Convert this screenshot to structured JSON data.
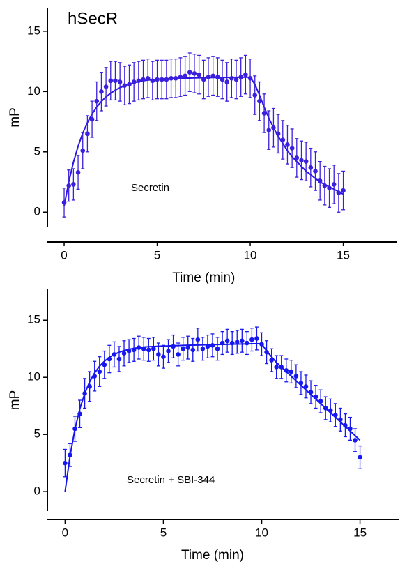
{
  "chart_data": [
    {
      "type": "scatter",
      "title": "hSecR",
      "annotation": "Secretin",
      "xlabel": "Time (min)",
      "ylabel": "mP",
      "xlim": [
        -0.9,
        17.9
      ],
      "ylim": [
        -1.2,
        16.9
      ],
      "xticks": [
        0,
        5,
        10,
        15
      ],
      "yticks": [
        0,
        5,
        10,
        15
      ],
      "x": [
        0,
        0.25,
        0.5,
        0.75,
        1,
        1.25,
        1.5,
        1.75,
        2,
        2.25,
        2.5,
        2.75,
        3,
        3.25,
        3.5,
        3.75,
        4,
        4.25,
        4.5,
        4.75,
        5,
        5.25,
        5.5,
        5.75,
        6,
        6.25,
        6.5,
        6.75,
        7,
        7.25,
        7.5,
        7.75,
        8,
        8.25,
        8.5,
        8.75,
        9,
        9.25,
        9.5,
        9.75,
        10,
        10.25,
        10.5,
        10.75,
        11,
        11.25,
        11.5,
        11.75,
        12,
        12.25,
        12.5,
        12.75,
        13,
        13.25,
        13.5,
        13.75,
        14,
        14.25,
        14.5,
        14.75,
        15
      ],
      "series": [
        {
          "color": "#3a1fdc",
          "values": [
            0.8,
            2.2,
            2.3,
            3.3,
            5.1,
            6.5,
            7.7,
            9.2,
            10.0,
            10.4,
            10.9,
            10.9,
            10.8,
            10.5,
            10.6,
            10.8,
            10.9,
            11.0,
            11.1,
            10.9,
            11.0,
            11.0,
            11.0,
            11.1,
            11.1,
            11.2,
            11.3,
            11.6,
            11.5,
            11.4,
            11.0,
            11.2,
            11.3,
            11.2,
            11.0,
            10.8,
            11.1,
            11.0,
            11.2,
            11.4,
            11.1,
            9.7,
            9.2,
            8.2,
            6.8,
            7.0,
            6.5,
            6.0,
            5.6,
            5.3,
            4.5,
            4.3,
            4.2,
            3.7,
            3.4,
            2.6,
            2.2,
            2.0,
            2.3,
            1.6,
            1.8
          ],
          "errors": [
            1.2,
            1.3,
            1.3,
            1.4,
            1.5,
            1.5,
            1.5,
            1.6,
            1.6,
            1.6,
            1.6,
            1.6,
            1.6,
            1.6,
            1.6,
            1.6,
            1.6,
            1.6,
            1.6,
            1.6,
            1.6,
            1.6,
            1.6,
            1.6,
            1.6,
            1.6,
            1.6,
            1.6,
            1.6,
            1.6,
            1.6,
            1.6,
            1.6,
            1.6,
            1.6,
            1.6,
            1.6,
            1.6,
            1.6,
            1.6,
            1.6,
            1.6,
            1.6,
            1.6,
            1.6,
            1.6,
            1.6,
            1.6,
            1.6,
            1.6,
            1.6,
            1.6,
            1.6,
            1.6,
            1.6,
            1.6,
            1.6,
            1.6,
            1.6,
            1.6,
            1.6
          ]
        }
      ],
      "fit": {
        "color": "#2a14e6",
        "values": [
          0.5,
          2.51,
          4.15,
          5.47,
          6.55,
          7.43,
          8.13,
          8.71,
          9.18,
          9.56,
          9.86,
          10.12,
          10.32,
          10.49,
          10.62,
          10.73,
          10.82,
          10.89,
          10.95,
          10.99,
          11.03,
          11.05,
          11.07,
          11.08,
          11.09,
          11.1,
          11.11,
          11.12,
          11.13,
          11.14,
          11.15,
          11.15,
          11.16,
          11.16,
          11.17,
          11.17,
          11.18,
          11.18,
          11.18,
          11.19,
          11.19,
          10.6,
          9.7,
          8.7,
          7.8,
          7.0,
          6.3,
          5.7,
          5.1,
          4.6,
          4.2,
          3.8,
          3.4,
          3.1,
          2.8,
          2.5,
          2.3,
          2.1,
          1.9,
          1.7,
          1.5
        ]
      }
    },
    {
      "type": "scatter",
      "annotation": "Secretin + SBI-344",
      "xlabel": "Time (min)",
      "ylabel": "mP",
      "xlim": [
        -0.9,
        17.0
      ],
      "ylim": [
        -1.7,
        17.7
      ],
      "xticks": [
        0,
        5,
        10,
        15
      ],
      "yticks": [
        0,
        5,
        10,
        15
      ],
      "x": [
        0,
        0.25,
        0.5,
        0.75,
        1,
        1.25,
        1.5,
        1.75,
        2,
        2.25,
        2.5,
        2.75,
        3,
        3.25,
        3.5,
        3.75,
        4,
        4.25,
        4.5,
        4.75,
        5,
        5.25,
        5.5,
        5.75,
        6,
        6.25,
        6.5,
        6.75,
        7,
        7.25,
        7.5,
        7.75,
        8,
        8.25,
        8.5,
        8.75,
        9,
        9.25,
        9.5,
        9.75,
        10,
        10.25,
        10.5,
        10.75,
        11,
        11.25,
        11.5,
        11.75,
        12,
        12.25,
        12.5,
        12.75,
        13,
        13.25,
        13.5,
        13.75,
        14,
        14.25,
        14.5,
        14.75,
        15
      ],
      "series": [
        {
          "color": "#1717f0",
          "values": [
            2.5,
            3.2,
            5.5,
            6.8,
            8.6,
            9.2,
            10.1,
            10.5,
            11.1,
            11.6,
            12.0,
            11.6,
            12.1,
            12.3,
            12.4,
            12.6,
            12.5,
            12.4,
            12.5,
            12.0,
            11.8,
            12.3,
            12.7,
            12.0,
            12.5,
            12.6,
            12.4,
            13.3,
            12.5,
            12.7,
            12.8,
            12.5,
            13.0,
            13.2,
            13.0,
            13.1,
            13.2,
            13.0,
            13.3,
            13.4,
            12.9,
            12.2,
            11.5,
            10.9,
            10.9,
            10.6,
            10.5,
            10.1,
            9.5,
            9.2,
            8.7,
            8.3,
            7.9,
            7.3,
            7.1,
            6.7,
            6.3,
            5.8,
            5.5,
            4.5,
            3.0
          ],
          "errors": [
            1.2,
            1.0,
            1.1,
            1.2,
            1.3,
            1.3,
            1.3,
            1.3,
            1.2,
            1.2,
            1.1,
            1.1,
            1.1,
            1.0,
            1.0,
            1.0,
            1.0,
            1.0,
            1.0,
            1.0,
            1.0,
            1.0,
            1.0,
            1.0,
            1.0,
            1.0,
            1.0,
            1.0,
            1.0,
            1.0,
            1.0,
            1.0,
            1.0,
            1.0,
            1.0,
            1.0,
            1.0,
            1.0,
            1.0,
            1.0,
            1.0,
            1.0,
            1.0,
            1.0,
            1.0,
            1.0,
            1.0,
            1.0,
            1.0,
            1.0,
            1.0,
            1.0,
            1.0,
            1.0,
            1.0,
            1.0,
            1.0,
            1.0,
            1.0,
            1.0,
            1.0
          ]
        }
      ],
      "fit": {
        "color": "#1414ee",
        "values": [
          0,
          3.11,
          5.46,
          7.24,
          8.59,
          9.61,
          10.38,
          10.97,
          11.41,
          11.75,
          12.0,
          12.2,
          12.34,
          12.45,
          12.54,
          12.6,
          12.65,
          12.68,
          12.7,
          12.72,
          12.74,
          12.75,
          12.77,
          12.78,
          12.8,
          12.81,
          12.82,
          12.83,
          12.84,
          12.85,
          12.86,
          12.87,
          12.88,
          12.89,
          12.9,
          12.91,
          12.92,
          12.93,
          12.94,
          12.94,
          12.95,
          12.3,
          11.8,
          11.3,
          10.9,
          10.5,
          10.1,
          9.7,
          9.3,
          8.9,
          8.5,
          8.1,
          7.7,
          7.3,
          6.9,
          6.5,
          6.1,
          5.7,
          5.3,
          4.9,
          4.5
        ]
      }
    }
  ]
}
